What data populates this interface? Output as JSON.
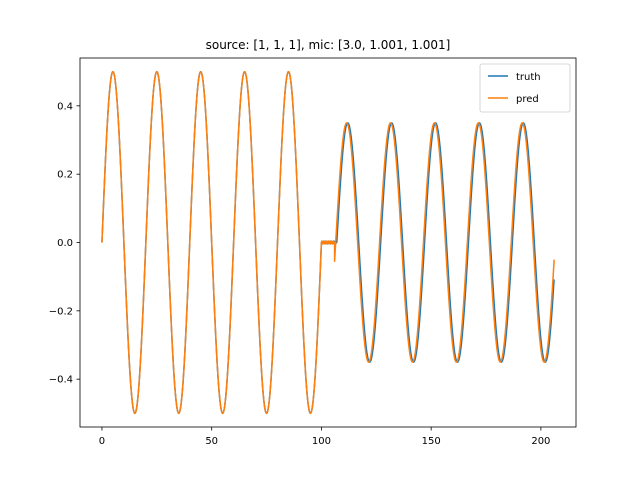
{
  "chart_data": {
    "type": "line",
    "title": "source: [1, 1, 1], mic: [3.0, 1.001, 1.001]",
    "xlabel": "",
    "ylabel": "",
    "xlim": [
      -10,
      216
    ],
    "ylim": [
      -0.54,
      0.54
    ],
    "xticks": [
      0,
      50,
      100,
      150,
      200
    ],
    "yticks": [
      -0.4,
      -0.2,
      0.0,
      0.2,
      0.4
    ],
    "ytick_labels": [
      "−0.4",
      "−0.2",
      "0.0",
      "0.2",
      "0.4"
    ],
    "grid": false,
    "legend_position": "top-right",
    "series": [
      {
        "name": "truth",
        "color": "#1f77b4",
        "segments": [
          {
            "x_start": 0,
            "x_end": 100,
            "amplitude": 0.5,
            "period": 20,
            "phase": 0
          },
          {
            "x_start": 100,
            "x_end": 107,
            "amplitude": 0.0,
            "period": 20,
            "phase": 0
          },
          {
            "x_start": 107,
            "x_end": 206,
            "amplitude": 0.35,
            "period": 20,
            "phase": 107
          }
        ]
      },
      {
        "name": "pred",
        "color": "#ff7f0e",
        "segments": [
          {
            "x_start": 0,
            "x_end": 100,
            "amplitude": 0.5,
            "period": 20,
            "phase": 0
          },
          {
            "x_start": 100,
            "x_end": 106,
            "amplitude": 0.0,
            "period": 20,
            "phase": 0
          },
          {
            "x_start": 106,
            "x_end": 206,
            "amplitude": 0.35,
            "period": 20,
            "phase": 106.5
          }
        ],
        "end_value": -0.05
      }
    ]
  }
}
